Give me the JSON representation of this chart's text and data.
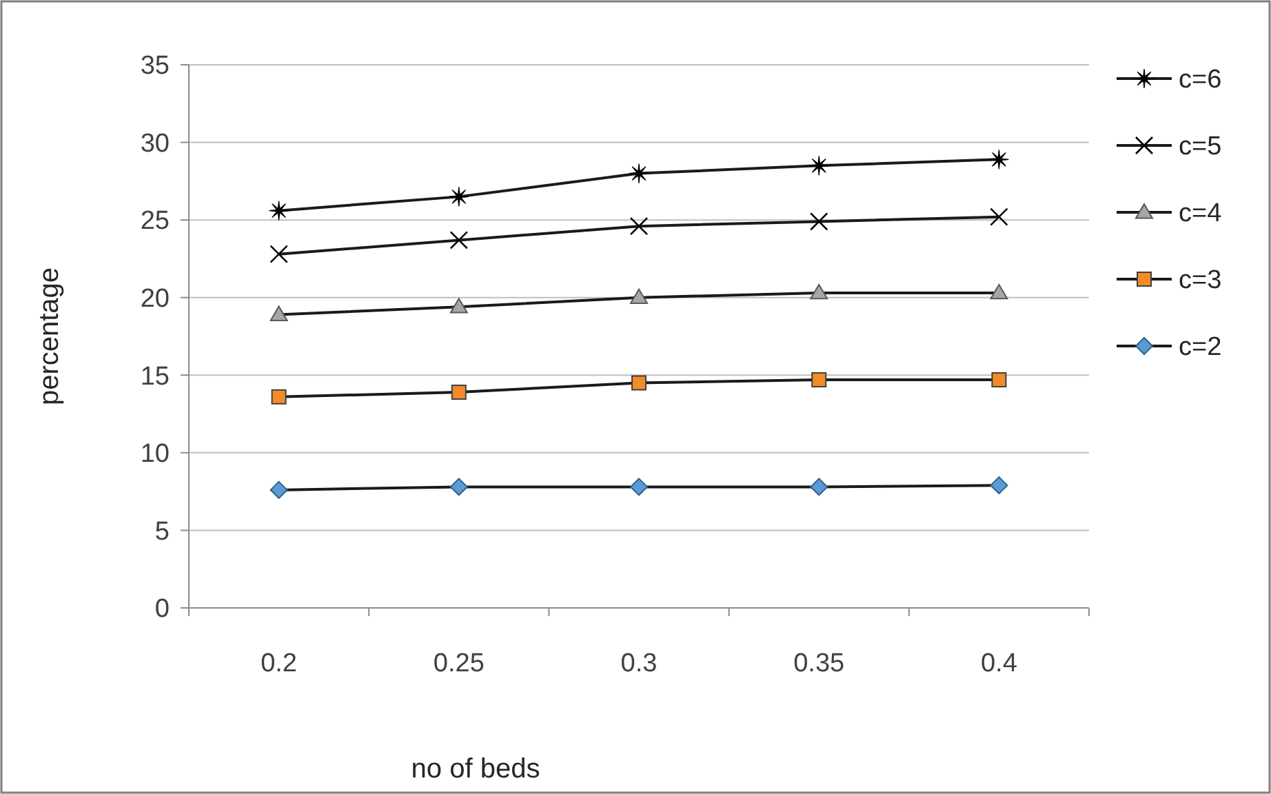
{
  "chart_data": {
    "type": "line",
    "xlabel": "no of beds",
    "ylabel": "percentage",
    "categories": [
      "0.2",
      "0.25",
      "0.3",
      "0.35",
      "0.4"
    ],
    "ylim": [
      0,
      35
    ],
    "yticks": [
      0,
      5,
      10,
      15,
      20,
      25,
      30,
      35
    ],
    "grid": "y",
    "legend": "right",
    "series": [
      {
        "name": "c=6",
        "color": "#000000",
        "marker": "star",
        "values": [
          25.6,
          26.5,
          28.0,
          28.5,
          28.9
        ]
      },
      {
        "name": "c=5",
        "color": "#000000",
        "marker": "cross",
        "values": [
          22.8,
          23.7,
          24.6,
          24.9,
          25.2
        ]
      },
      {
        "name": "c=4",
        "color": "#a6a6a6",
        "marker": "triangle",
        "values": [
          18.9,
          19.4,
          20.0,
          20.3,
          20.3
        ]
      },
      {
        "name": "c=3",
        "color": "#f28c28",
        "marker": "square",
        "values": [
          13.6,
          13.9,
          14.5,
          14.7,
          14.7
        ]
      },
      {
        "name": "c=2",
        "color": "#5b9bd5",
        "marker": "diamond",
        "values": [
          7.6,
          7.8,
          7.8,
          7.8,
          7.9
        ]
      }
    ]
  }
}
